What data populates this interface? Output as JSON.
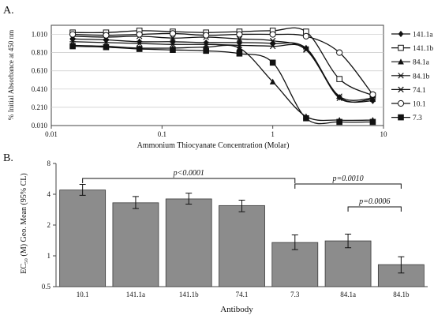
{
  "chart_data": [
    {
      "panel_label": "A.",
      "type": "line",
      "xlabel": "Ammonium Thiocyanate Concentration (Molar)",
      "ylabel": "% Initial Absorbance at 450 nm",
      "xscale": "log",
      "xlim": [
        0.01,
        10
      ],
      "ylim": [
        0.01,
        1.11
      ],
      "xticks": [
        "0.01",
        "0.1",
        "1",
        "10"
      ],
      "yticks": [
        "0.010",
        "0.210",
        "0.410",
        "0.610",
        "0.810",
        "1.010"
      ],
      "legend_position": "right",
      "x": [
        0.0156,
        0.03125,
        0.0625,
        0.125,
        0.25,
        0.5,
        1,
        2,
        4,
        8
      ],
      "series": [
        {
          "name": "141.1a",
          "marker": "diamond-filled",
          "values": [
            0.96,
            0.95,
            0.93,
            0.93,
            0.92,
            0.92,
            0.91,
            0.86,
            0.32,
            0.28
          ]
        },
        {
          "name": "141.1b",
          "marker": "square-open",
          "values": [
            1.03,
            1.03,
            1.05,
            1.04,
            1.03,
            1.04,
            1.05,
            1.04,
            0.52,
            0.34
          ]
        },
        {
          "name": "84.1a",
          "marker": "triangle-filled",
          "values": [
            0.89,
            0.88,
            0.86,
            0.86,
            0.87,
            0.86,
            0.49,
            0.11,
            0.07,
            0.07
          ]
        },
        {
          "name": "84.1b",
          "marker": "x-star",
          "values": [
            0.93,
            0.92,
            0.91,
            0.9,
            0.9,
            0.89,
            0.88,
            0.85,
            0.31,
            0.3
          ]
        },
        {
          "name": "74.1",
          "marker": "x",
          "values": [
            0.99,
            0.98,
            0.99,
            0.97,
            0.98,
            0.96,
            0.94,
            0.84,
            0.33,
            0.31
          ]
        },
        {
          "name": "10.1",
          "marker": "circle-open",
          "values": [
            1.01,
            1.0,
            1.01,
            1.02,
            1.0,
            1.01,
            1.01,
            0.99,
            0.81,
            0.35
          ]
        },
        {
          "name": "7.3",
          "marker": "square-filled",
          "values": [
            0.88,
            0.87,
            0.85,
            0.84,
            0.83,
            0.8,
            0.7,
            0.09,
            0.05,
            0.05
          ]
        }
      ]
    },
    {
      "panel_label": "B.",
      "type": "bar",
      "xlabel": "Antibody",
      "ylabel": "EC₅₀ (M) Geo. Mean (95% CL)",
      "yscale": "log",
      "ylim": [
        0.5,
        8
      ],
      "yticks": [
        "0.5",
        "1",
        "2",
        "4",
        "8"
      ],
      "categories": [
        "10.1",
        "141.1a",
        "141.1b",
        "74.1",
        "7.3",
        "84.1a",
        "84.1b"
      ],
      "values": [
        4.4,
        3.3,
        3.6,
        3.1,
        1.35,
        1.4,
        0.82
      ],
      "ci_low": [
        3.9,
        2.9,
        3.2,
        2.7,
        1.15,
        1.2,
        0.68
      ],
      "ci_high": [
        5.0,
        3.8,
        4.1,
        3.5,
        1.6,
        1.63,
        0.98
      ],
      "annotations": [
        {
          "text": "p<0.0001",
          "from": "10.1",
          "to": "7.3"
        },
        {
          "text": "p=0.0010",
          "from": "7.3",
          "to": "84.1b"
        },
        {
          "text": "p=0.0006",
          "from": "84.1a",
          "to": "84.1b"
        }
      ]
    }
  ]
}
